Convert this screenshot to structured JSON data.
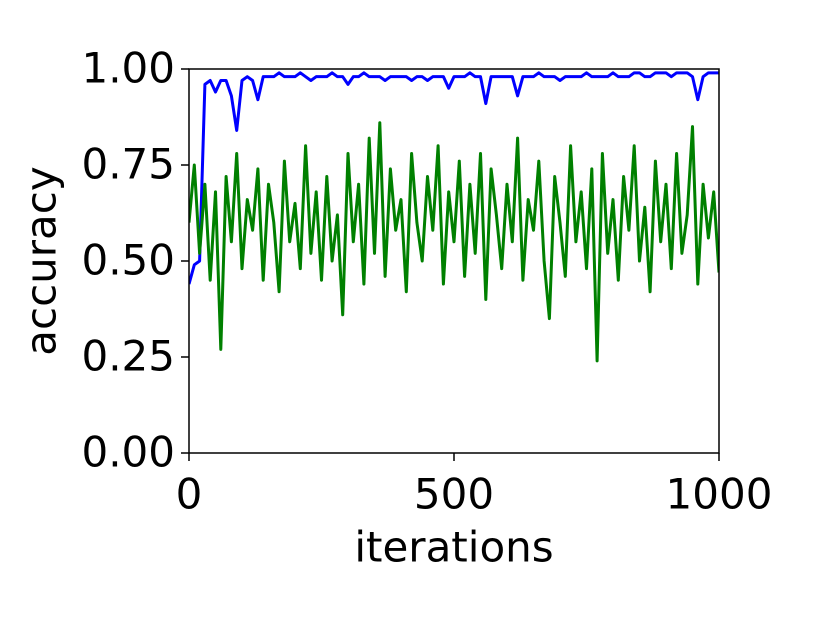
{
  "chart_data": {
    "type": "line",
    "xlabel": "iterations",
    "ylabel": "accuracy",
    "x": [
      0,
      10,
      20,
      30,
      40,
      50,
      60,
      70,
      80,
      90,
      100,
      110,
      120,
      130,
      140,
      150,
      160,
      170,
      180,
      190,
      200,
      210,
      220,
      230,
      240,
      250,
      260,
      270,
      280,
      290,
      300,
      310,
      320,
      330,
      340,
      350,
      360,
      370,
      380,
      390,
      400,
      410,
      420,
      430,
      440,
      450,
      460,
      470,
      480,
      490,
      500,
      510,
      520,
      530,
      540,
      550,
      560,
      570,
      580,
      590,
      600,
      610,
      620,
      630,
      640,
      650,
      660,
      670,
      680,
      690,
      700,
      710,
      720,
      730,
      740,
      750,
      760,
      770,
      780,
      790,
      800,
      810,
      820,
      830,
      840,
      850,
      860,
      870,
      880,
      890,
      900,
      910,
      920,
      930,
      940,
      950,
      960,
      970,
      980,
      990,
      1000
    ],
    "series": [
      {
        "color": "#0000ff",
        "values": [
          0.44,
          0.49,
          0.5,
          0.96,
          0.97,
          0.94,
          0.97,
          0.97,
          0.93,
          0.84,
          0.97,
          0.98,
          0.97,
          0.92,
          0.98,
          0.98,
          0.98,
          0.99,
          0.98,
          0.98,
          0.98,
          0.99,
          0.98,
          0.97,
          0.98,
          0.98,
          0.98,
          0.99,
          0.98,
          0.98,
          0.96,
          0.98,
          0.98,
          0.99,
          0.98,
          0.98,
          0.98,
          0.97,
          0.98,
          0.98,
          0.98,
          0.98,
          0.97,
          0.98,
          0.98,
          0.97,
          0.98,
          0.98,
          0.98,
          0.95,
          0.98,
          0.98,
          0.98,
          0.99,
          0.98,
          0.98,
          0.91,
          0.98,
          0.98,
          0.98,
          0.98,
          0.98,
          0.93,
          0.98,
          0.98,
          0.98,
          0.99,
          0.98,
          0.98,
          0.98,
          0.97,
          0.98,
          0.98,
          0.98,
          0.98,
          0.99,
          0.98,
          0.98,
          0.98,
          0.98,
          0.99,
          0.98,
          0.98,
          0.98,
          0.99,
          0.99,
          0.98,
          0.98,
          0.99,
          0.99,
          0.99,
          0.98,
          0.99,
          0.99,
          0.99,
          0.98,
          0.92,
          0.98,
          0.99,
          0.99,
          0.99
        ]
      },
      {
        "color": "#008000",
        "values": [
          0.6,
          0.75,
          0.52,
          0.7,
          0.45,
          0.68,
          0.27,
          0.72,
          0.55,
          0.78,
          0.48,
          0.66,
          0.58,
          0.74,
          0.45,
          0.7,
          0.6,
          0.42,
          0.76,
          0.55,
          0.65,
          0.48,
          0.8,
          0.52,
          0.68,
          0.45,
          0.72,
          0.5,
          0.62,
          0.36,
          0.78,
          0.55,
          0.7,
          0.44,
          0.82,
          0.52,
          0.86,
          0.46,
          0.74,
          0.58,
          0.66,
          0.42,
          0.78,
          0.6,
          0.5,
          0.72,
          0.58,
          0.8,
          0.44,
          0.68,
          0.55,
          0.76,
          0.46,
          0.7,
          0.52,
          0.78,
          0.4,
          0.74,
          0.62,
          0.48,
          0.7,
          0.55,
          0.82,
          0.45,
          0.66,
          0.58,
          0.76,
          0.5,
          0.35,
          0.72,
          0.6,
          0.46,
          0.8,
          0.55,
          0.68,
          0.48,
          0.74,
          0.24,
          0.78,
          0.52,
          0.66,
          0.45,
          0.72,
          0.58,
          0.8,
          0.5,
          0.64,
          0.42,
          0.76,
          0.55,
          0.7,
          0.48,
          0.78,
          0.52,
          0.62,
          0.85,
          0.44,
          0.7,
          0.56,
          0.68,
          0.47
        ]
      }
    ],
    "xlim": [
      0,
      1000
    ],
    "xticks": [
      0,
      500,
      1000
    ],
    "ylim": [
      0,
      1
    ],
    "yticks": [
      {
        "value": 0,
        "label": "0.00"
      },
      {
        "value": 0.25,
        "label": "0.25"
      },
      {
        "value": 0.5,
        "label": "0.50"
      },
      {
        "value": 0.75,
        "label": "0.75"
      },
      {
        "value": 1,
        "label": "1.00"
      }
    ],
    "grid": false
  }
}
